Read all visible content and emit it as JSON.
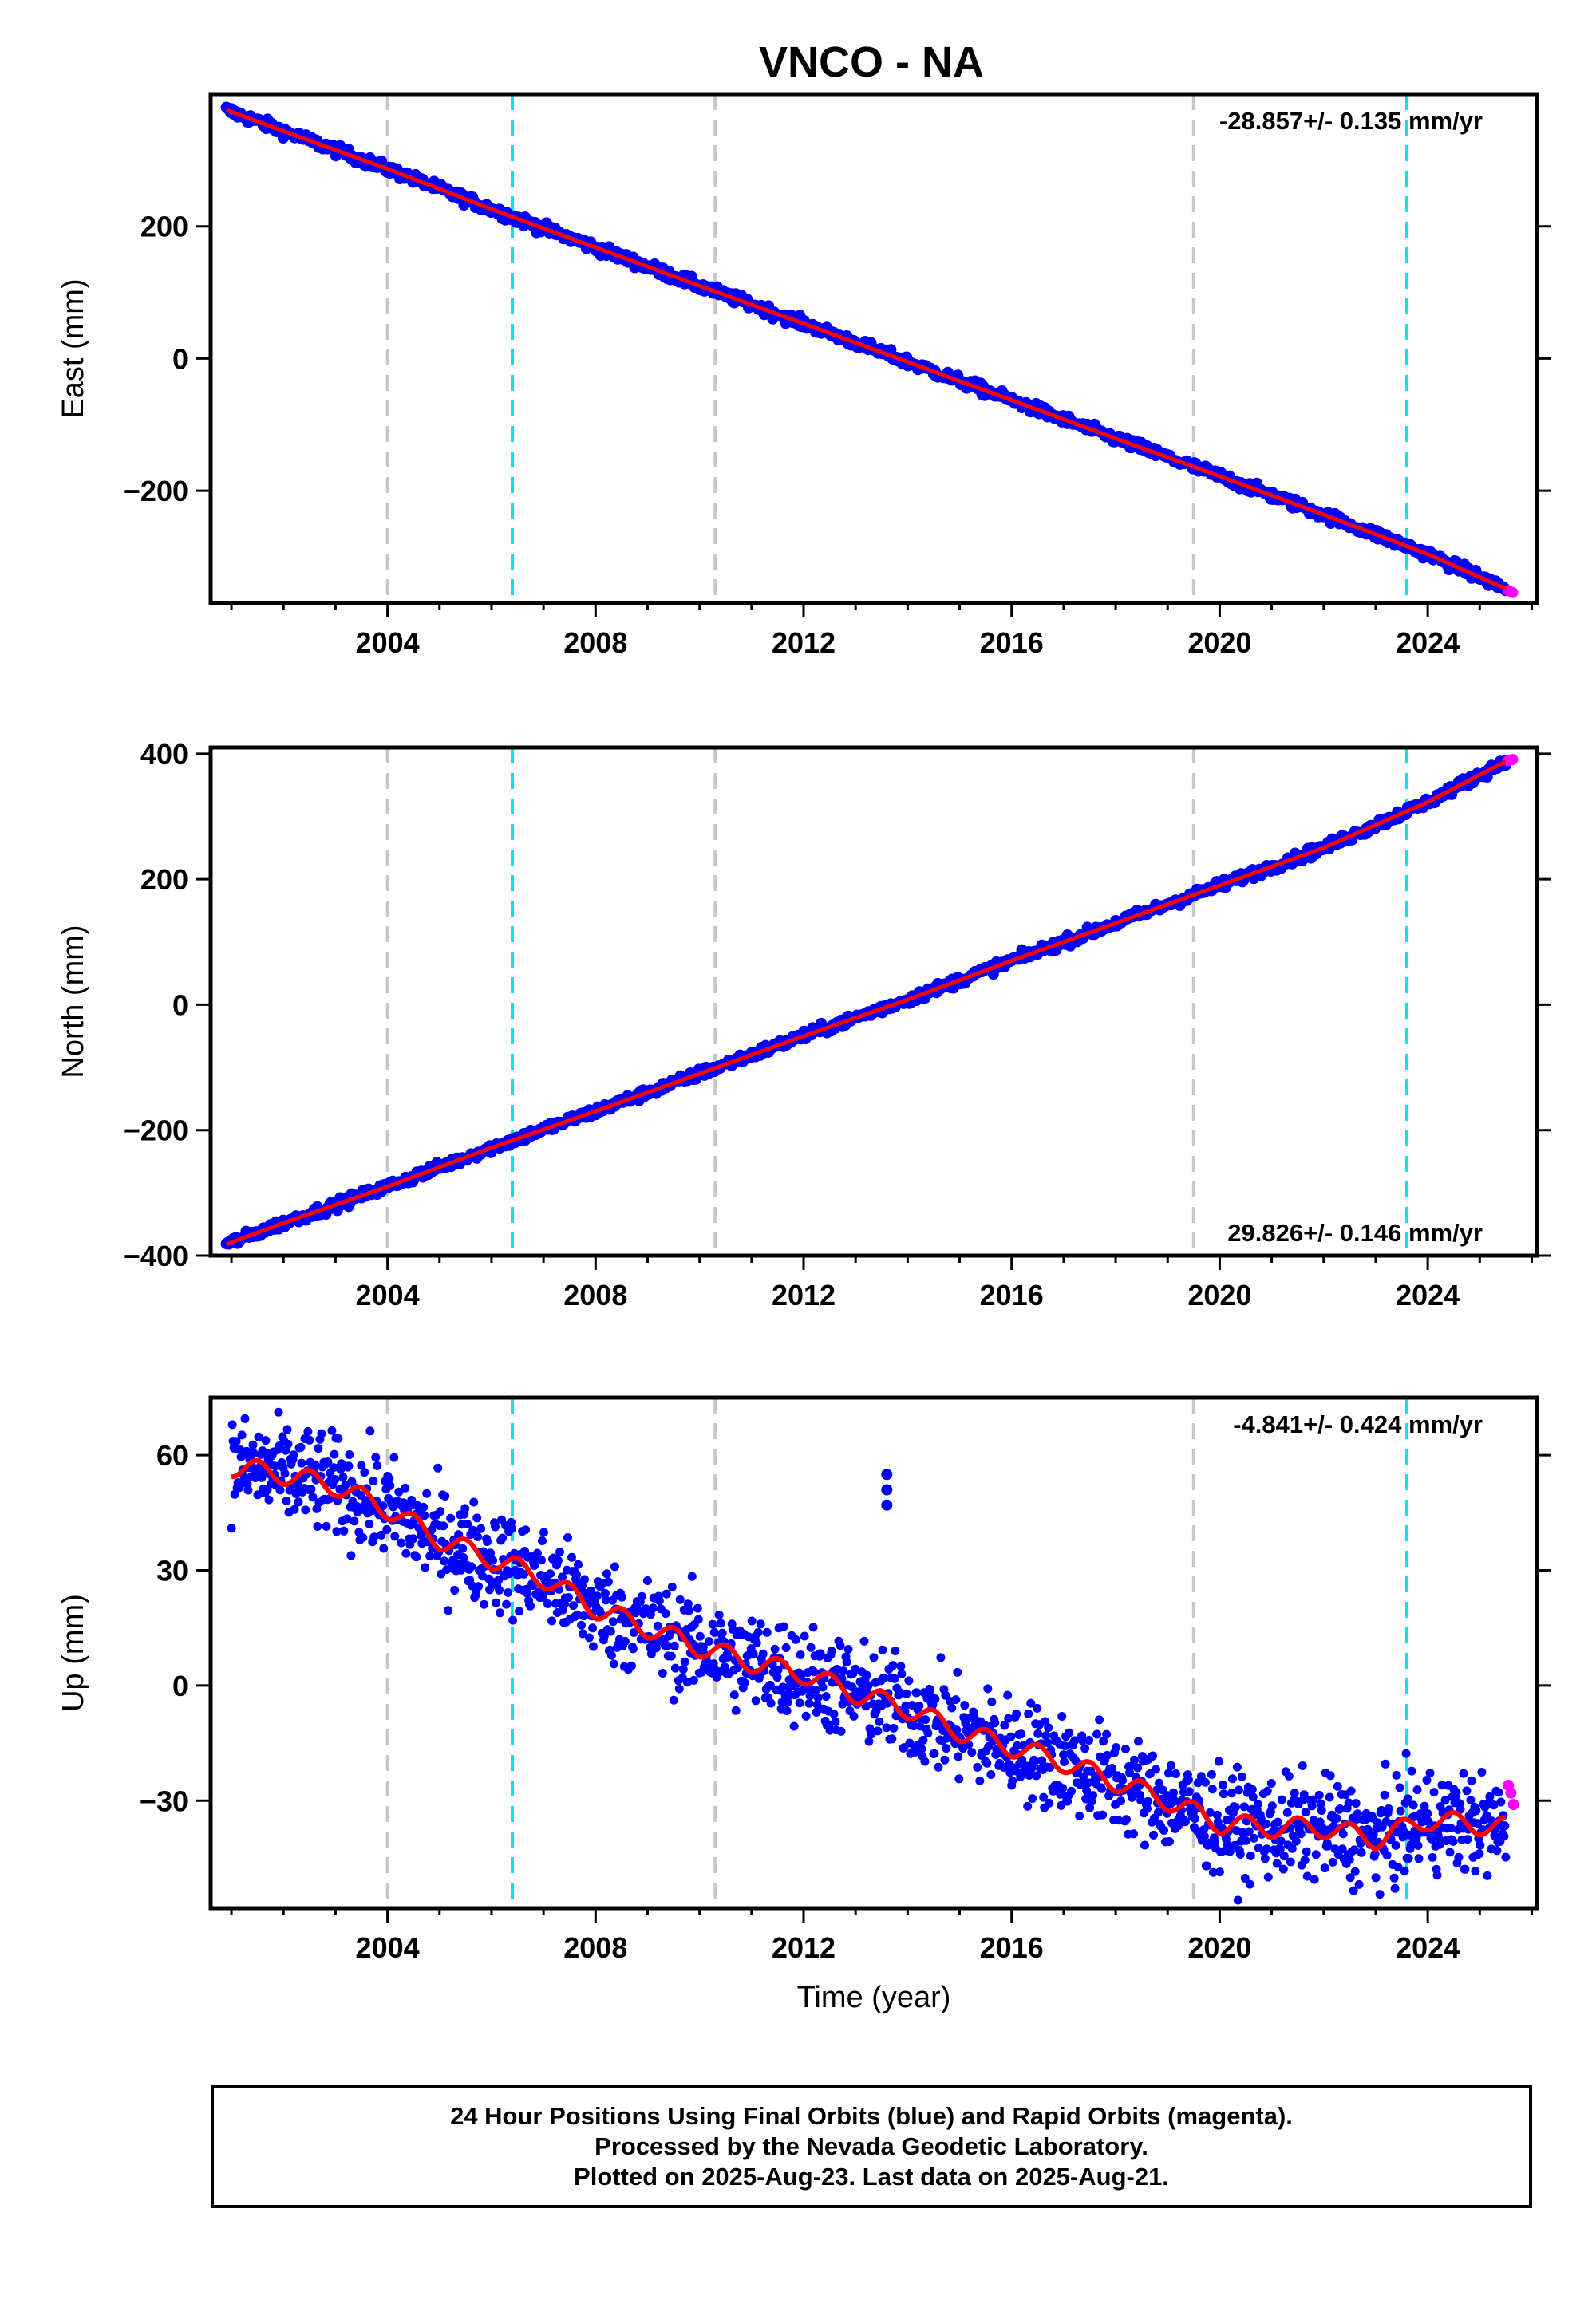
{
  "page_title": "VNCO - NA",
  "colors": {
    "final_orbits": "#0000ff",
    "rapid_orbits": "#ff00ff",
    "model_fit": "#ff0000",
    "antenna_change": "#c8c8c8",
    "equipment_change": "#00e5e5"
  },
  "chart_data": [
    {
      "type": "scatter",
      "title": "",
      "xlabel": "",
      "ylabel": "East (mm)",
      "xlim": [
        2000.6,
        2026.1
      ],
      "ylim": [
        -370,
        400
      ],
      "x_ticks": [
        2004,
        2008,
        2012,
        2016,
        2020,
        2024
      ],
      "y_ticks": [
        -200,
        0,
        200
      ],
      "rate_label": "-28.857+/- 0.135 mm/yr",
      "rate_position": "top-right",
      "trend": {
        "start": [
          2000.9,
          378
        ],
        "end": [
          2025.6,
          -353
        ],
        "rate_mm_per_yr": -28.857
      },
      "series": [
        {
          "role": "final orbits (blue)",
          "x": [
            2000.9,
            2002,
            2004,
            2006,
            2008,
            2010,
            2012,
            2014,
            2016,
            2018,
            2020,
            2022,
            2024,
            2025.5
          ],
          "y": [
            376,
            344,
            287,
            226,
            168,
            110,
            53,
            -5,
            -63,
            -121,
            -178,
            -236,
            -296,
            -348
          ]
        },
        {
          "role": "rapid orbits (magenta)",
          "x": [
            2025.55,
            2025.63
          ],
          "y": [
            -351,
            -354
          ]
        }
      ],
      "vlines_gray": [
        2004.0,
        2010.3,
        2019.5
      ],
      "vlines_cyan": [
        2006.4,
        2023.6
      ]
    },
    {
      "type": "scatter",
      "title": "",
      "xlabel": "",
      "ylabel": "North (mm)",
      "xlim": [
        2000.6,
        2026.1
      ],
      "ylim": [
        -400,
        410
      ],
      "x_ticks": [
        2004,
        2008,
        2012,
        2016,
        2020,
        2024
      ],
      "y_ticks": [
        -400,
        -200,
        0,
        200,
        400
      ],
      "rate_label": "29.826+/- 0.146 mm/yr",
      "rate_position": "bottom-right",
      "trend": {
        "start": [
          2000.9,
          -383
        ],
        "end": [
          2025.6,
          390
        ],
        "rate_mm_per_yr": 29.826
      },
      "series": [
        {
          "role": "final orbits (blue)",
          "x": [
            2000.9,
            2002,
            2004,
            2006,
            2008,
            2010,
            2012,
            2014,
            2016,
            2018,
            2020,
            2022,
            2024,
            2025.5
          ],
          "y": [
            -382,
            -348,
            -290,
            -228,
            -170,
            -110,
            -50,
            8,
            70,
            130,
            190,
            250,
            323,
            388
          ]
        },
        {
          "role": "rapid orbits (magenta)",
          "x": [
            2025.55,
            2025.63
          ],
          "y": [
            389,
            391
          ]
        }
      ],
      "vlines_gray": [
        2004.0,
        2010.3,
        2019.5
      ],
      "vlines_cyan": [
        2006.4,
        2023.6
      ]
    },
    {
      "type": "scatter",
      "title": "",
      "xlabel": "Time (year)",
      "ylabel": "Up (mm)",
      "xlim": [
        2000.6,
        2026.1
      ],
      "ylim": [
        -58,
        75
      ],
      "x_ticks": [
        2004,
        2008,
        2012,
        2016,
        2020,
        2024
      ],
      "y_ticks": [
        -30,
        0,
        30,
        60
      ],
      "rate_label": "-4.841+/- 0.424 mm/yr",
      "rate_position": "top-right",
      "trend": {
        "start": [
          2000.9,
          58
        ],
        "end": [
          2025.6,
          -38
        ],
        "rate_mm_per_yr": -4.841
      },
      "series": [
        {
          "role": "final orbits (blue)",
          "x": [
            2001,
            2002,
            2003,
            2004,
            2005,
            2006,
            2007,
            2008,
            2009,
            2010,
            2011,
            2012,
            2013,
            2014,
            2015,
            2016,
            2017,
            2018,
            2019,
            2020,
            2021,
            2022,
            2023,
            2024,
            2025.5
          ],
          "y": [
            57,
            55,
            52,
            46,
            38,
            33,
            28,
            20,
            15,
            10,
            6,
            3,
            -2,
            -6,
            -12,
            -16,
            -20,
            -25,
            -30,
            -36,
            -37,
            -37,
            -40,
            -35,
            -37
          ]
        },
        {
          "role": "rapid orbits (magenta)",
          "x": [
            2025.55,
            2025.6,
            2025.65
          ],
          "y": [
            -26,
            -28,
            -31
          ]
        },
        {
          "role": "outliers",
          "x": [
            2013.6,
            2013.6,
            2013.6
          ],
          "y": [
            55,
            51,
            47
          ]
        }
      ],
      "vlines_gray": [
        2004.0,
        2010.3,
        2019.5
      ],
      "vlines_cyan": [
        2006.4,
        2023.6
      ]
    }
  ],
  "footer": {
    "line1": "24 Hour Positions Using Final Orbits (blue) and Rapid Orbits (magenta).",
    "line2": "Processed by the Nevada Geodetic Laboratory.",
    "line3": "Plotted on 2025-Aug-23. Last data on 2025-Aug-21."
  }
}
